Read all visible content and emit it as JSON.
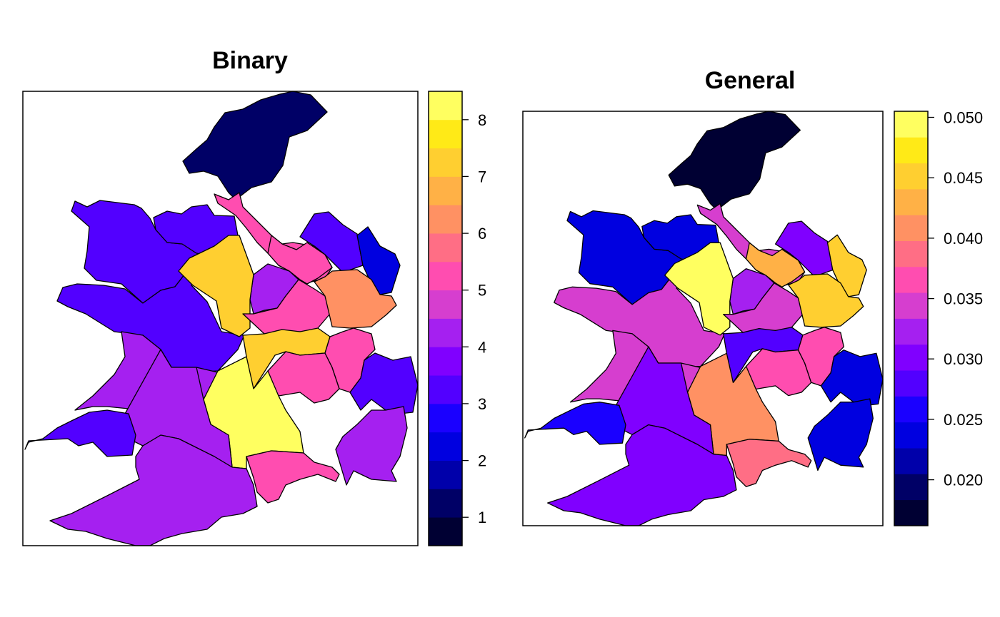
{
  "palette": [
    "#000033",
    "#000066",
    "#0000AA",
    "#0000E0",
    "#1A00FF",
    "#5200FF",
    "#8000FF",
    "#A520F0",
    "#D63ECF",
    "#FF4DB0",
    "#FF6E85",
    "#FF9163",
    "#FFB146",
    "#FFCF30",
    "#FFEA17",
    "#FFFF60"
  ],
  "maps": [
    {
      "title": "Binary",
      "legend": {
        "ticks": [
          "1",
          "2",
          "3",
          "4",
          "5",
          "6",
          "7",
          "8"
        ],
        "tick_values": [
          1,
          2,
          3,
          4,
          5,
          6,
          7,
          8
        ],
        "range": [
          0.5,
          8.5
        ],
        "bins": 16
      },
      "region_values": [
        1,
        3,
        3,
        3,
        3,
        2,
        5,
        4,
        7,
        5,
        5,
        6,
        4,
        7,
        5,
        8,
        5,
        4,
        3,
        3,
        4,
        4,
        5
      ]
    },
    {
      "title": "General",
      "legend": {
        "ticks": [
          "0.020",
          "0.025",
          "0.030",
          "0.035",
          "0.040",
          "0.045",
          "0.050"
        ],
        "tick_values": [
          0.02,
          0.025,
          0.03,
          0.035,
          0.04,
          0.045,
          0.05
        ],
        "range": [
          0.0162,
          0.0505
        ],
        "bins": 16
      },
      "region_values": [
        0.0175,
        0.0245,
        0.0235,
        0.0295,
        0.0335,
        0.0455,
        0.0345,
        0.0325,
        0.0495,
        0.034,
        0.042,
        0.045,
        0.034,
        0.0285,
        0.036,
        0.04,
        0.0375,
        0.03,
        0.025,
        0.024,
        0.024,
        0.03,
        0.038
      ]
    }
  ]
}
